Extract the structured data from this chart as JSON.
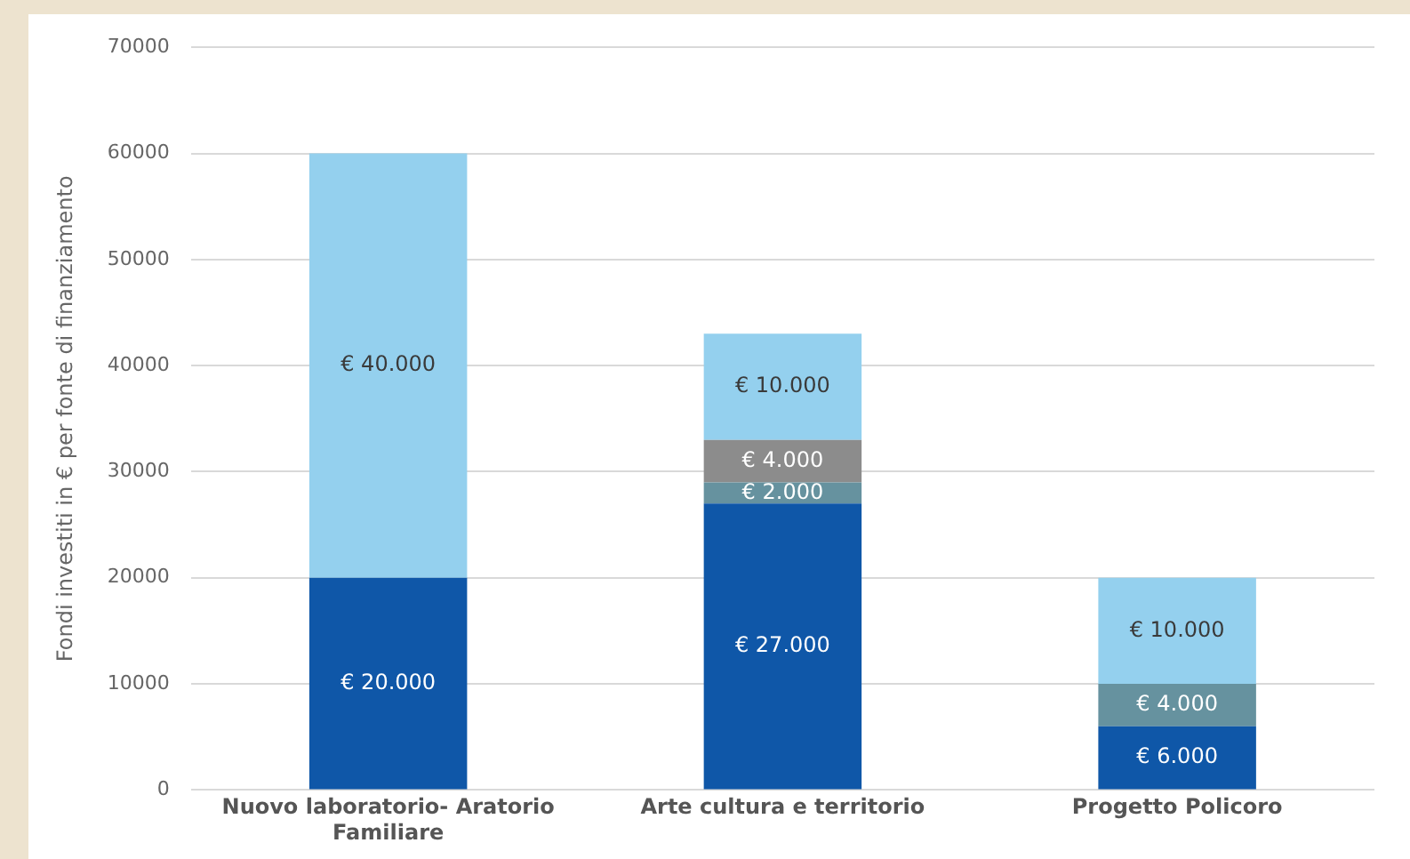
{
  "chart_data": {
    "type": "bar",
    "stacked": true,
    "ylabel": "Fondi investiti in € per fonte di finanziamento",
    "categories": [
      "Nuovo laboratorio- Aratorio Familiare",
      "Arte cultura e territorio",
      "Progetto Policoro"
    ],
    "series": [
      {
        "color": "#0f57a8",
        "values": [
          20000,
          27000,
          6000
        ],
        "value_labels": [
          "€ 20.000",
          "€ 27.000",
          "€ 6.000"
        ]
      },
      {
        "color": "#66929f",
        "values": [
          null,
          2000,
          4000
        ],
        "value_labels": [
          null,
          "€ 2.000",
          "€ 4.000"
        ]
      },
      {
        "color": "#8c8c8c",
        "values": [
          null,
          4000,
          null
        ],
        "value_labels": [
          null,
          "€ 4.000",
          null
        ]
      },
      {
        "color": "#94d0ee",
        "values": [
          40000,
          10000,
          10000
        ],
        "value_labels": [
          "€ 40.000",
          "€ 10.000",
          "€ 10.000"
        ]
      }
    ],
    "ylim": [
      0,
      70000
    ],
    "yticks": [
      0,
      10000,
      20000,
      30000,
      40000,
      50000,
      60000,
      70000
    ],
    "grid": "y",
    "legend": false
  }
}
